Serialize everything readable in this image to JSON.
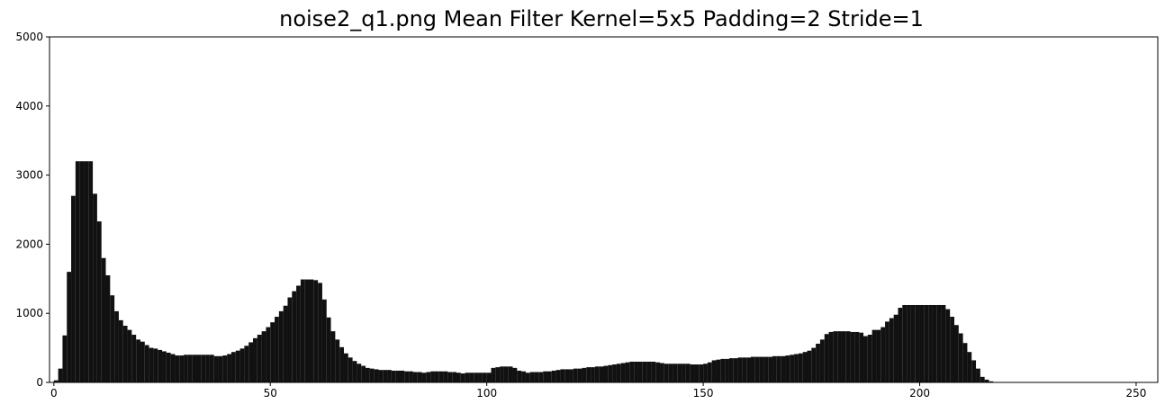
{
  "chart_data": {
    "type": "histogram",
    "title": "noise2_q1.png Mean Filter Kernel=5x5 Padding=2 Stride=1",
    "color": "#111111",
    "bins": [
      0,
      1,
      2,
      3,
      4,
      5,
      6,
      7,
      8,
      9,
      10,
      11,
      12,
      13,
      14,
      15,
      16,
      17,
      18,
      19,
      20,
      21,
      22,
      23,
      24,
      25,
      26,
      27,
      28,
      29,
      30,
      31,
      32,
      33,
      34,
      35,
      36,
      37,
      38,
      39,
      40,
      41,
      42,
      43,
      44,
      45,
      46,
      47,
      48,
      49,
      50,
      51,
      52,
      53,
      54,
      55,
      56,
      57,
      58,
      59,
      60,
      61,
      62,
      63,
      64,
      65,
      66,
      67,
      68,
      69,
      70,
      71,
      72,
      73,
      74,
      75,
      76,
      77,
      78,
      79,
      80,
      81,
      82,
      83,
      84,
      85,
      86,
      87,
      88,
      89,
      90,
      91,
      92,
      93,
      94,
      95,
      96,
      97,
      98,
      99,
      100,
      101,
      102,
      103,
      104,
      105,
      106,
      107,
      108,
      109,
      110,
      111,
      112,
      113,
      114,
      115,
      116,
      117,
      118,
      119,
      120,
      121,
      122,
      123,
      124,
      125,
      126,
      127,
      128,
      129,
      130,
      131,
      132,
      133,
      134,
      135,
      136,
      137,
      138,
      139,
      140,
      141,
      142,
      143,
      144,
      145,
      146,
      147,
      148,
      149,
      150,
      151,
      152,
      153,
      154,
      155,
      156,
      157,
      158,
      159,
      160,
      161,
      162,
      163,
      164,
      165,
      166,
      167,
      168,
      169,
      170,
      171,
      172,
      173,
      174,
      175,
      176,
      177,
      178,
      179,
      180,
      181,
      182,
      183,
      184,
      185,
      186,
      187,
      188,
      189,
      190,
      191,
      192,
      193,
      194,
      195,
      196,
      197,
      198,
      199,
      200,
      201,
      202,
      203,
      204,
      205,
      206,
      207,
      208,
      209,
      210,
      211,
      212,
      213,
      214,
      215,
      216,
      217,
      218,
      219,
      220,
      221,
      222,
      223,
      224,
      225,
      226,
      227,
      228,
      229,
      230,
      231,
      232,
      233,
      234,
      235,
      236,
      237,
      238,
      239,
      240,
      241,
      242,
      243,
      244,
      245,
      246,
      247,
      248,
      249,
      250,
      251,
      252,
      253,
      254,
      255,
      256
    ],
    "values": [
      30,
      200,
      680,
      1600,
      2700,
      3200,
      3200,
      3200,
      3200,
      2730,
      2330,
      1800,
      1550,
      1260,
      1030,
      900,
      820,
      760,
      690,
      620,
      590,
      540,
      500,
      490,
      470,
      450,
      430,
      410,
      390,
      390,
      400,
      400,
      400,
      400,
      400,
      400,
      400,
      380,
      380,
      390,
      410,
      440,
      460,
      490,
      530,
      580,
      640,
      690,
      740,
      800,
      870,
      950,
      1030,
      1110,
      1230,
      1320,
      1400,
      1490,
      1490,
      1490,
      1480,
      1440,
      1200,
      940,
      740,
      620,
      510,
      420,
      360,
      310,
      270,
      240,
      210,
      200,
      190,
      180,
      180,
      180,
      170,
      170,
      170,
      160,
      160,
      150,
      150,
      140,
      150,
      160,
      160,
      160,
      160,
      150,
      150,
      140,
      130,
      140,
      140,
      140,
      140,
      140,
      140,
      210,
      220,
      230,
      230,
      230,
      210,
      170,
      160,
      140,
      150,
      150,
      150,
      160,
      160,
      170,
      180,
      190,
      190,
      190,
      200,
      200,
      210,
      220,
      220,
      230,
      230,
      240,
      250,
      260,
      270,
      280,
      290,
      300,
      300,
      300,
      300,
      300,
      300,
      290,
      280,
      270,
      270,
      270,
      270,
      270,
      270,
      260,
      260,
      260,
      270,
      290,
      320,
      330,
      340,
      340,
      350,
      350,
      360,
      360,
      360,
      370,
      370,
      370,
      370,
      370,
      380,
      380,
      380,
      390,
      400,
      410,
      420,
      440,
      460,
      500,
      560,
      620,
      700,
      730,
      740,
      740,
      740,
      740,
      730,
      730,
      720,
      670,
      690,
      760,
      760,
      800,
      880,
      930,
      980,
      1080,
      1120,
      1120,
      1120,
      1120,
      1120,
      1120,
      1120,
      1120,
      1120,
      1120,
      1060,
      950,
      830,
      710,
      570,
      440,
      320,
      200,
      80,
      40,
      15,
      0,
      0,
      0,
      0,
      0,
      0,
      0,
      0,
      0,
      0,
      0,
      0,
      0,
      0,
      0,
      0,
      0,
      0,
      0,
      0,
      0,
      0,
      0,
      0,
      0,
      0,
      0,
      0,
      0,
      0,
      0,
      0,
      0,
      0,
      0,
      0,
      0,
      0,
      0
    ],
    "xlim": [
      -1,
      255
    ],
    "ylim": [
      0,
      5000
    ],
    "xticks": [
      0,
      50,
      100,
      150,
      200,
      250
    ],
    "yticks": [
      0,
      1000,
      2000,
      3000,
      4000,
      5000
    ]
  }
}
